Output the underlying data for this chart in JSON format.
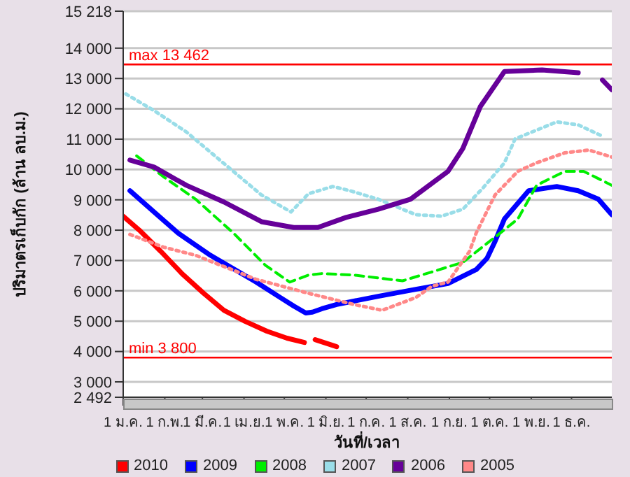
{
  "chart_data": {
    "type": "line",
    "xlabel": "วันที่/เวลา",
    "ylabel": "ปริมาตรเก็บกัก (ล้าน ลบ.ม.)",
    "xlim": [
      "--01-01",
      "--12-31"
    ],
    "xticks": [
      {
        "value": "--01-01",
        "label": "1 ม.ค."
      },
      {
        "value": "--02-01",
        "label": "1 ก.พ."
      },
      {
        "value": "--03-01",
        "label": "1 มี.ค."
      },
      {
        "value": "--04-01",
        "label": "1 เม.ย."
      },
      {
        "value": "--05-01",
        "label": "1 พ.ค."
      },
      {
        "value": "--06-01",
        "label": "1 มิ.ย."
      },
      {
        "value": "--07-01",
        "label": "1 ก.ค."
      },
      {
        "value": "--08-01",
        "label": "1 ส.ค."
      },
      {
        "value": "--09-01",
        "label": "1 ก.ย."
      },
      {
        "value": "--10-01",
        "label": "1 ต.ค."
      },
      {
        "value": "--11-01",
        "label": "1 พ.ย."
      },
      {
        "value": "--12-01",
        "label": "1 ธ.ค."
      }
    ],
    "ylim": [
      2492,
      15218
    ],
    "yticks": [
      {
        "value": 2492,
        "label": "2 492"
      },
      {
        "value": 3000,
        "label": "3 000"
      },
      {
        "value": 4000,
        "label": "4 000"
      },
      {
        "value": 5000,
        "label": "5 000"
      },
      {
        "value": 6000,
        "label": "6 000"
      },
      {
        "value": 7000,
        "label": "7 000"
      },
      {
        "value": 8000,
        "label": "8 000"
      },
      {
        "value": 9000,
        "label": "9 000"
      },
      {
        "value": 10000,
        "label": "10 000"
      },
      {
        "value": 11000,
        "label": "11 000"
      },
      {
        "value": 12000,
        "label": "12 000"
      },
      {
        "value": 13000,
        "label": "13 000"
      },
      {
        "value": 14000,
        "label": "14 000"
      },
      {
        "value": 15218,
        "label": "15 218"
      }
    ],
    "grid": "y",
    "legend": "bottom",
    "ref_lines": [
      {
        "axis": "y",
        "value": 13462,
        "label": "max 13 462",
        "color": "#ff0000"
      },
      {
        "axis": "y",
        "value": 3800,
        "label": "min 3 800",
        "color": "#ff0000"
      }
    ],
    "series": [
      {
        "name": "2010",
        "color": "#ff0000",
        "line_style": "solid",
        "x": [
          "--01-01",
          "--01-13",
          "--01-29",
          "--02-14",
          "--03-02",
          "--03-17",
          "--04-02",
          "--04-18",
          "--05-03",
          "--05-16",
          "--05-20",
          "--05-24",
          "--06-09"
        ],
        "values": [
          8460,
          8000,
          7300,
          6560,
          5920,
          5360,
          4990,
          4670,
          4440,
          4300,
          null,
          4390,
          4160
        ]
      },
      {
        "name": "2009",
        "color": "#0000ff",
        "line_style": "solid",
        "x": [
          "--01-06",
          "--01-24",
          "--02-11",
          "--03-07",
          "--04-10",
          "--04-28",
          "--05-08",
          "--05-17",
          "--05-22",
          "--05-29",
          "--06-09",
          "--07-10",
          "--08-07",
          "--08-31",
          "--09-21",
          "--09-29",
          "--10-05",
          "--10-12",
          "--10-30",
          "--11-20",
          "--12-06",
          "--12-21",
          "--12-31"
        ],
        "values": [
          9300,
          8600,
          7900,
          7170,
          6290,
          5780,
          5500,
          5270,
          5300,
          5410,
          5550,
          5820,
          6050,
          6240,
          6700,
          7070,
          7630,
          8370,
          9300,
          9440,
          9300,
          9020,
          8510
        ]
      },
      {
        "name": "2008",
        "color": "#00ee00",
        "line_style": "dashed",
        "x": [
          "--01-11",
          "--01-31",
          "--02-24",
          "--03-24",
          "--04-17",
          "--05-05",
          "--05-19",
          "--05-29",
          "--06-22",
          "--07-28",
          "--08-18",
          "--09-11",
          "--10-05",
          "--10-22",
          "--11-05",
          "--11-26",
          "--12-10",
          "--12-31"
        ],
        "values": [
          10450,
          9760,
          9020,
          7910,
          6840,
          6290,
          6520,
          6570,
          6520,
          6330,
          6610,
          6940,
          7770,
          8370,
          9480,
          9940,
          9940,
          9480
        ]
      },
      {
        "name": "2007",
        "color": "#99dde8",
        "line_style": "dotted",
        "x": [
          "--01-03",
          "--01-24",
          "--02-17",
          "--03-24",
          "--04-14",
          "--05-06",
          "--05-19",
          "--06-06",
          "--06-19",
          "--07-10",
          "--08-07",
          "--08-26",
          "--09-11",
          "--09-26",
          "--10-12",
          "--10-20",
          "--11-20",
          "--12-06",
          "--12-24"
        ],
        "values": [
          12490,
          11940,
          11240,
          9940,
          9160,
          8600,
          9200,
          9440,
          9300,
          9020,
          8510,
          8460,
          8690,
          9390,
          10220,
          11010,
          11570,
          11470,
          11100
        ]
      },
      {
        "name": "2006",
        "color": "#660099",
        "line_style": "solid",
        "x": [
          "--01-06",
          "--01-24",
          "--02-17",
          "--03-17",
          "--04-14",
          "--05-08",
          "--05-26",
          "--06-16",
          "--07-10",
          "--08-03",
          "--08-31",
          "--09-11",
          "--09-24",
          "--10-12",
          "--11-09",
          "--12-06",
          "--12-15",
          "--12-24",
          "--12-31"
        ],
        "values": [
          10310,
          10080,
          9480,
          8930,
          8280,
          8090,
          8090,
          8420,
          8690,
          9020,
          9940,
          10690,
          12070,
          13230,
          13280,
          13190,
          null,
          12950,
          12630
        ]
      },
      {
        "name": "2005",
        "color": "#ff8888",
        "line_style": "dotted",
        "x": [
          "--01-06",
          "--01-31",
          "--02-24",
          "--03-20",
          "--04-10",
          "--05-19",
          "--06-22",
          "--07-13",
          "--08-07",
          "--08-19",
          "--08-31",
          "--09-16",
          "--09-21",
          "--10-05",
          "--10-22",
          "--11-05",
          "--11-26",
          "--12-14",
          "--12-31"
        ],
        "values": [
          7860,
          7440,
          7170,
          6750,
          6380,
          5920,
          5550,
          5360,
          5780,
          6150,
          6290,
          7300,
          7910,
          9160,
          9940,
          10220,
          10550,
          10640,
          10410
        ]
      }
    ]
  }
}
